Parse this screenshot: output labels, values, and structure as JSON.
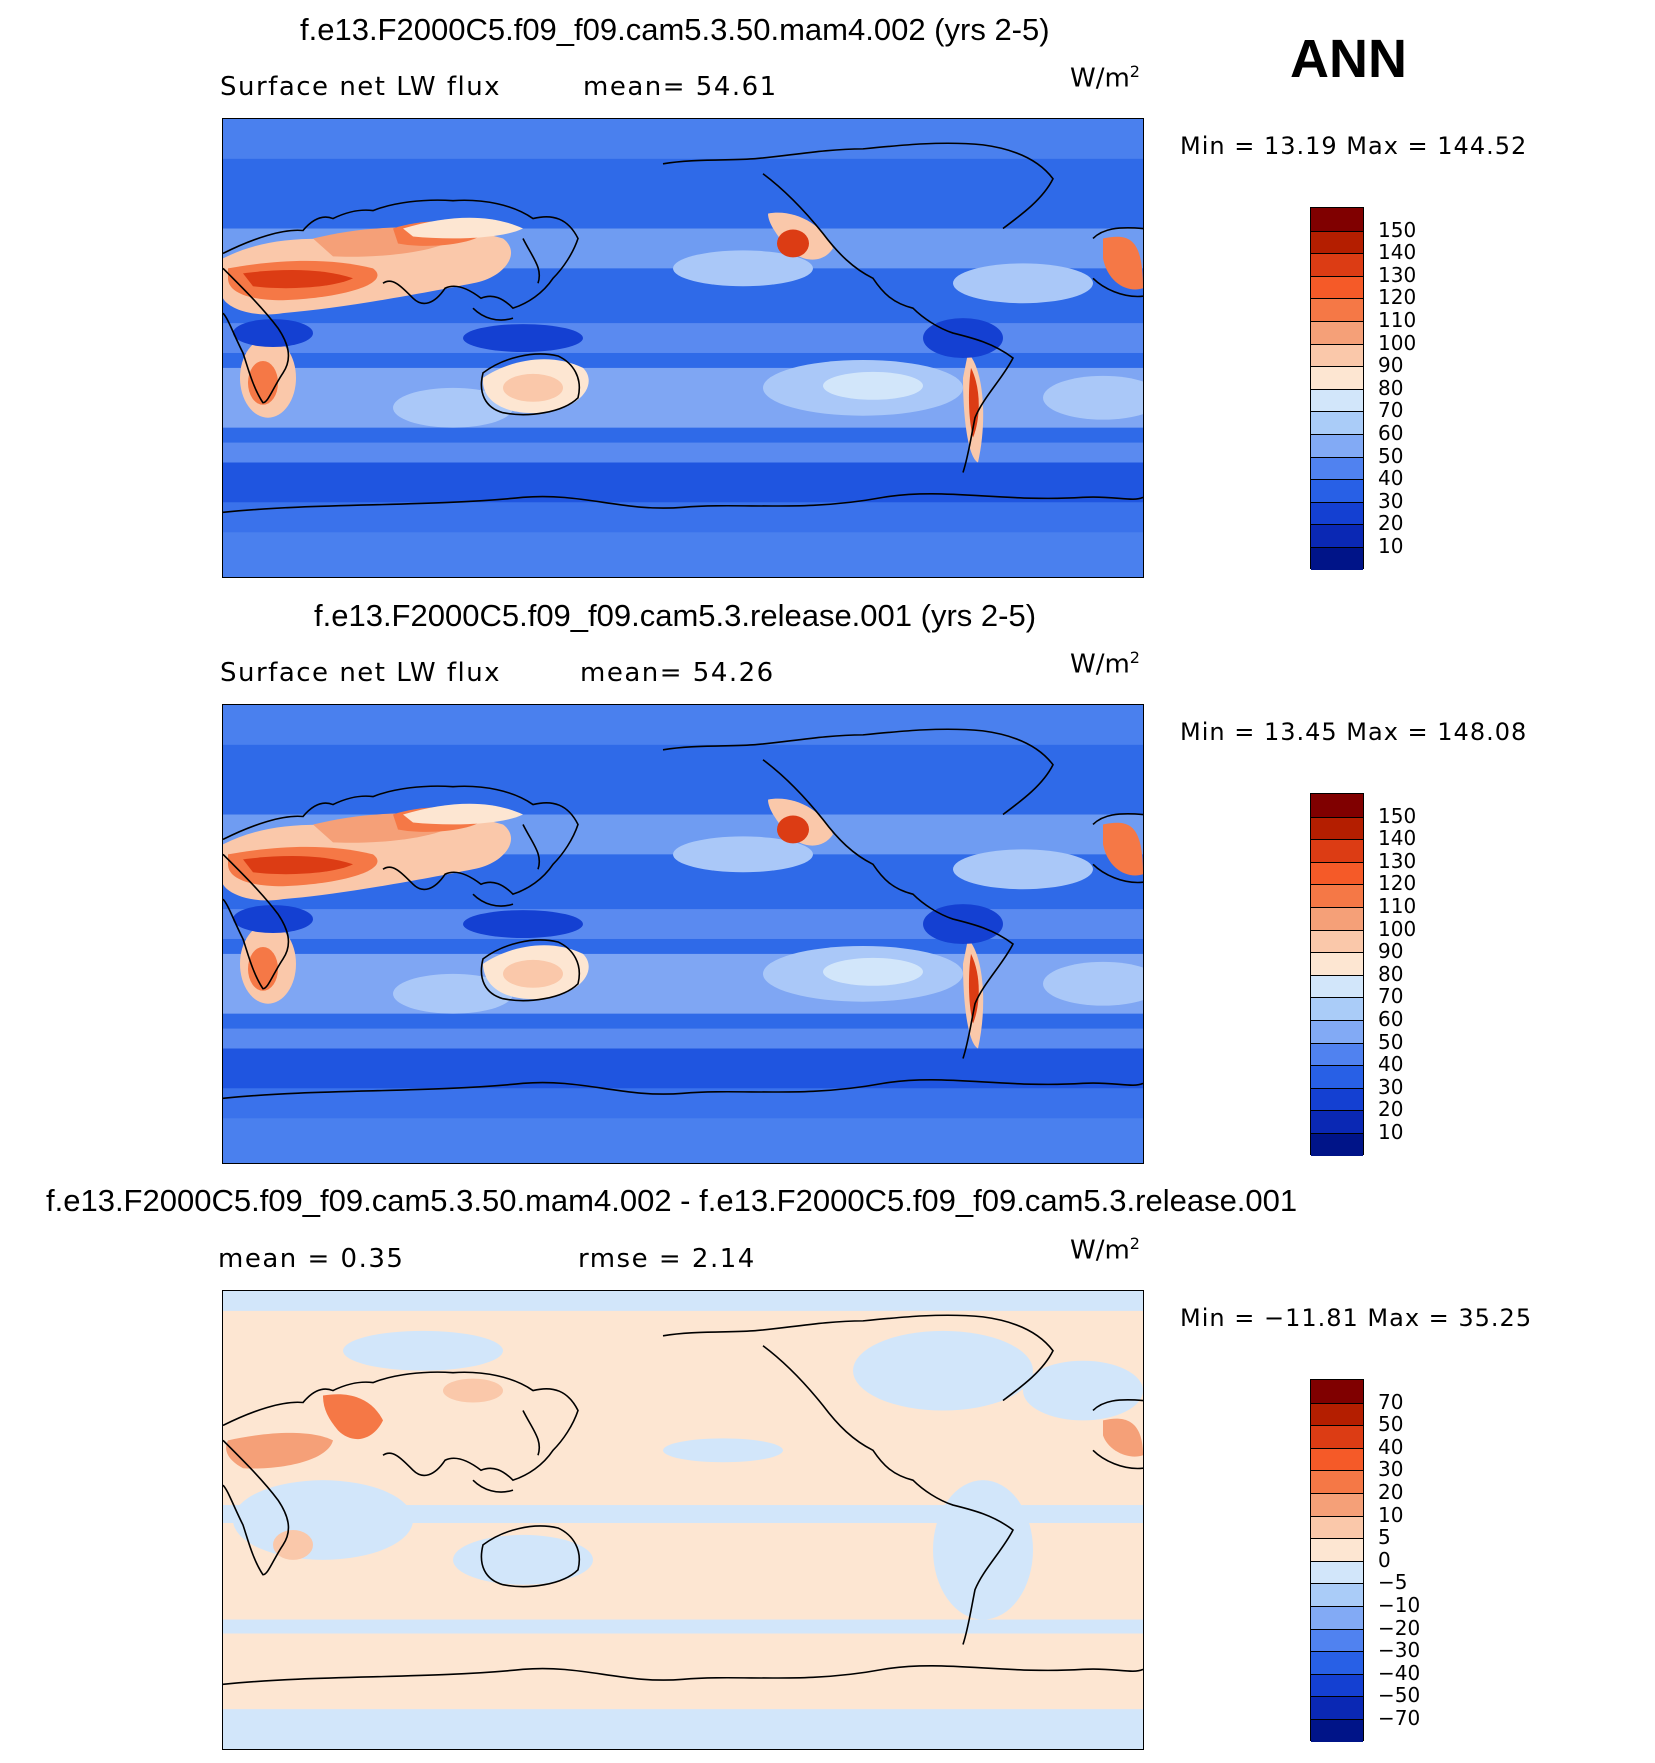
{
  "header": {
    "season": "ANN"
  },
  "panels": [
    {
      "title": "f.e13.F2000C5.f09_f09.cam5.3.50.mam4.002 (yrs 2-5)",
      "left_label": "Surface net LW flux",
      "mid_label": "mean=  54.61",
      "units_base": "W/m",
      "units_exp": "2",
      "minmax": "Min =   13.19 Max =  144.52",
      "colorbar_labels": [
        "150",
        "140",
        "130",
        "120",
        "110",
        "100",
        "90",
        "80",
        "70",
        "60",
        "50",
        "40",
        "30",
        "20",
        "10"
      ]
    },
    {
      "title": "f.e13.F2000C5.f09_f09.cam5.3.release.001 (yrs 2-5)",
      "left_label": "Surface net LW flux",
      "mid_label": "mean=  54.26",
      "units_base": "W/m",
      "units_exp": "2",
      "minmax": "Min =   13.45 Max =  148.08",
      "colorbar_labels": [
        "150",
        "140",
        "130",
        "120",
        "110",
        "100",
        "90",
        "80",
        "70",
        "60",
        "50",
        "40",
        "30",
        "20",
        "10"
      ]
    },
    {
      "title": "f.e13.F2000C5.f09_f09.cam5.3.50.mam4.002 - f.e13.F2000C5.f09_f09.cam5.3.release.001",
      "left_label": "mean =    0.35",
      "mid_label": "rmse =    2.14",
      "units_base": "W/m",
      "units_exp": "2",
      "minmax": "Min = −11.81 Max =   35.25",
      "colorbar_labels": [
        "70",
        "50",
        "40",
        "30",
        "20",
        "10",
        "5",
        "0",
        "−5",
        "−10",
        "−20",
        "−30",
        "−40",
        "−50",
        "−70"
      ]
    }
  ],
  "colors": {
    "flux_scale": [
      "#800000",
      "#b41e00",
      "#dc3c14",
      "#f55a28",
      "#f57846",
      "#f5a078",
      "#fac8aa",
      "#fde6d2",
      "#d2e6fa",
      "#aaccf8",
      "#82aaf5",
      "#5082f0",
      "#2860e6",
      "#1440d2",
      "#0a28b4",
      "#001488"
    ],
    "diff_scale": [
      "#800000",
      "#b41e00",
      "#dc3c14",
      "#f55a28",
      "#f57846",
      "#f5a078",
      "#fac8aa",
      "#fde6d2",
      "#d2e6fa",
      "#aaccf8",
      "#82aaf5",
      "#5082f0",
      "#2860e6",
      "#1440d2",
      "#0a28b4",
      "#001488"
    ]
  }
}
